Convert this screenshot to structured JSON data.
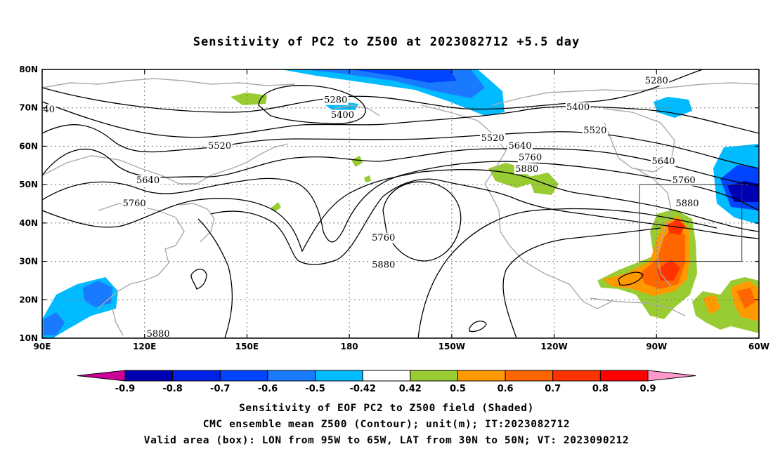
{
  "title": "Sensitivity of PC2 to Z500 at 2023082712 +5.5 day",
  "captions": [
    "Sensitivity of EOF PC2 to Z500 field (Shaded)",
    "CMC ensemble mean Z500 (Contour); unit(m); IT:2023082712",
    "Valid area (box): LON from 95W to 65W, LAT from 30N to 50N; VT: 2023090212"
  ],
  "map": {
    "lon_range": [
      90,
      300
    ],
    "lat_range": [
      10,
      80
    ],
    "lon_ticks": [
      {
        "lon": 90,
        "label": "90E"
      },
      {
        "lon": 120,
        "label": "120E"
      },
      {
        "lon": 150,
        "label": "150E"
      },
      {
        "lon": 180,
        "label": "180"
      },
      {
        "lon": 210,
        "label": "150W"
      },
      {
        "lon": 240,
        "label": "120W"
      },
      {
        "lon": 270,
        "label": "90W"
      },
      {
        "lon": 300,
        "label": "60W"
      }
    ],
    "lat_ticks": [
      {
        "lat": 10,
        "label": "10N"
      },
      {
        "lat": 20,
        "label": "20N"
      },
      {
        "lat": 30,
        "label": "30N"
      },
      {
        "lat": 40,
        "label": "40N"
      },
      {
        "lat": 50,
        "label": "50N"
      },
      {
        "lat": 60,
        "label": "60N"
      },
      {
        "lat": 70,
        "label": "70N"
      },
      {
        "lat": 80,
        "label": "80N"
      }
    ],
    "valid_box": {
      "lon_min": 265,
      "lon_max": 295,
      "lat_min": 30,
      "lat_max": 50
    },
    "contour_labels": [
      {
        "text": "5280",
        "lon": 270,
        "lat": 77
      },
      {
        "text": "40",
        "lon": 92,
        "lat": 69.5
      },
      {
        "text": "5280",
        "lon": 176,
        "lat": 72
      },
      {
        "text": "5400",
        "lon": 178,
        "lat": 68
      },
      {
        "text": "5400",
        "lon": 247,
        "lat": 70
      },
      {
        "text": "5520",
        "lon": 252,
        "lat": 64
      },
      {
        "text": "5520",
        "lon": 222,
        "lat": 62
      },
      {
        "text": "5520",
        "lon": 142,
        "lat": 60
      },
      {
        "text": "5640",
        "lon": 230,
        "lat": 60
      },
      {
        "text": "5640",
        "lon": 272,
        "lat": 56
      },
      {
        "text": "5760",
        "lon": 233,
        "lat": 57
      },
      {
        "text": "5760",
        "lon": 278,
        "lat": 51
      },
      {
        "text": "5880",
        "lon": 232,
        "lat": 54
      },
      {
        "text": "5880",
        "lon": 279,
        "lat": 45
      },
      {
        "text": "5640",
        "lon": 121,
        "lat": 51
      },
      {
        "text": "5760",
        "lon": 117,
        "lat": 45
      },
      {
        "text": "5760",
        "lon": 190,
        "lat": 36
      },
      {
        "text": "5880",
        "lon": 190,
        "lat": 29
      },
      {
        "text": "5880",
        "lon": 124,
        "lat": 11
      }
    ]
  },
  "colorbar": {
    "labels": [
      "-0.9",
      "-0.8",
      "-0.7",
      "-0.6",
      "-0.5",
      "-0.42",
      "0.42",
      "0.5",
      "0.6",
      "0.7",
      "0.8",
      "0.9"
    ],
    "colors": [
      "#cc0099",
      "#0000b3",
      "#0022e6",
      "#0044ff",
      "#1a7aff",
      "#00bbff",
      "#ffffff",
      "#99cc33",
      "#ff9900",
      "#ff6600",
      "#ff3300",
      "#ff0000",
      "#ff99cc"
    ]
  }
}
